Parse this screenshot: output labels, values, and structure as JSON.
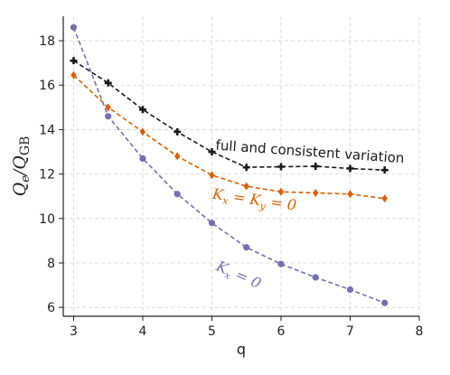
{
  "chart_data": {
    "type": "line",
    "xlabel": "q",
    "ylabel": "Q_e/Q_GB",
    "xlim": [
      2.85,
      8.0
    ],
    "ylim": [
      5.6,
      19.1
    ],
    "xticks": [
      "3",
      "4",
      "5",
      "6",
      "7",
      "8"
    ],
    "yticks": [
      "6",
      "8",
      "10",
      "12",
      "14",
      "16",
      "18"
    ],
    "grid": true,
    "series": [
      {
        "color": "#1a1a1a",
        "marker": "plus",
        "x": [
          3.0,
          3.5,
          4.0,
          4.5,
          5.0,
          5.5,
          6.0,
          6.5,
          7.0,
          7.5
        ],
        "y": [
          17.1,
          16.1,
          14.9,
          13.9,
          13.0,
          12.3,
          12.33,
          12.35,
          12.25,
          12.18
        ]
      },
      {
        "color": "#d95f02",
        "marker": "diamond",
        "x": [
          3.0,
          3.5,
          4.0,
          4.5,
          5.0,
          5.5,
          6.0,
          6.5,
          7.0,
          7.5
        ],
        "y": [
          16.45,
          15.0,
          13.9,
          12.8,
          11.95,
          11.45,
          11.2,
          11.15,
          11.1,
          10.9
        ]
      },
      {
        "color": "#7570b3",
        "marker": "circle",
        "x": [
          3.0,
          3.5,
          4.0,
          4.5,
          5.0,
          5.5,
          6.0,
          6.5,
          7.0,
          7.5
        ],
        "y": [
          18.6,
          14.6,
          12.7,
          11.1,
          9.8,
          8.7,
          7.95,
          7.35,
          6.8,
          6.2
        ]
      }
    ],
    "annotations": [
      {
        "text": "full and consistent variation",
        "color": "#1a1a1a",
        "x": 5.05,
        "y": 13.1
      },
      {
        "text": "K_x = K_y = 0",
        "color": "#d95f02",
        "x": 5.0,
        "y": 10.9
      },
      {
        "text": "K_x = 0",
        "color": "#7570b3",
        "x": 5.05,
        "y": 7.7
      }
    ]
  }
}
